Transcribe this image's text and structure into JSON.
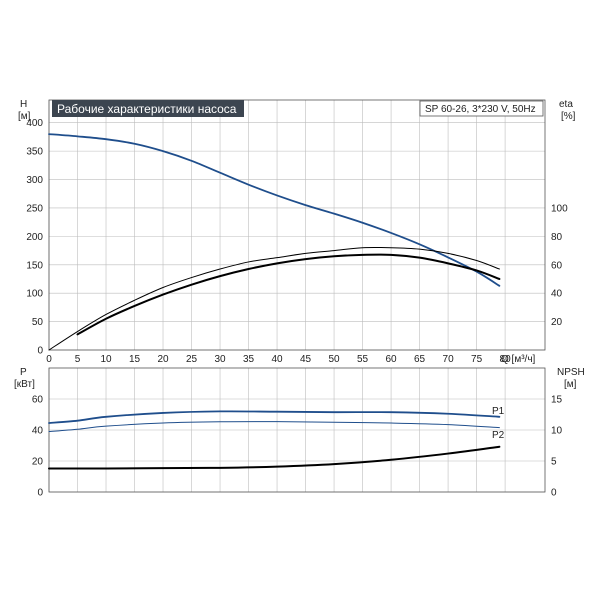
{
  "chart_data": [
    {
      "type": "line",
      "title": "Рабочие характеристики насоса",
      "subtitle": "SP 60-26, 3*230 V, 50Hz",
      "xlabel": "Q [м³/ч]",
      "ylabel_left": "H",
      "ylabel_left_unit": "[м]",
      "ylabel_right": "eta",
      "ylabel_right_unit": "[%]",
      "xlim": [
        0,
        87
      ],
      "ylim": [
        0,
        440
      ],
      "ylim_right": [
        0,
        176
      ],
      "x_ticks": [
        "0",
        "5",
        "10",
        "15",
        "20",
        "25",
        "30",
        "35",
        "40",
        "45",
        "50",
        "55",
        "60",
        "65",
        "70",
        "75",
        "80"
      ],
      "y_ticks": [
        "0",
        "50",
        "100",
        "150",
        "200",
        "250",
        "300",
        "350",
        "400"
      ],
      "y_right_ticks": [
        "20",
        "40",
        "60",
        "80",
        "100"
      ],
      "grid": true,
      "series": [
        {
          "axis": "left",
          "color": "#1f4e8c",
          "x": [
            0,
            5,
            10,
            15,
            20,
            25,
            30,
            35,
            40,
            45,
            50,
            55,
            60,
            65,
            70,
            75,
            79
          ],
          "y": [
            380,
            376,
            371,
            363,
            350,
            333,
            312,
            291,
            272,
            255,
            240,
            224,
            206,
            186,
            163,
            138,
            113
          ]
        },
        {
          "axis": "right",
          "color": "#000000",
          "x": [
            0,
            5,
            10,
            15,
            20,
            25,
            30,
            35,
            40,
            45,
            50,
            55,
            60,
            65,
            70,
            75,
            79
          ],
          "y": [
            0,
            13,
            25,
            35,
            44,
            51,
            57,
            62,
            65,
            68,
            70,
            72,
            72,
            71,
            68,
            63,
            57
          ]
        },
        {
          "axis": "right",
          "color": "#000000",
          "x": [
            5,
            10,
            15,
            20,
            25,
            30,
            35,
            40,
            45,
            50,
            55,
            60,
            65,
            70,
            75,
            79
          ],
          "y": [
            11,
            22,
            31,
            39,
            46,
            52,
            57,
            61,
            64,
            66,
            67,
            67,
            65,
            61,
            56,
            50
          ]
        }
      ]
    },
    {
      "type": "line",
      "xlabel": "",
      "ylabel_left": "P",
      "ylabel_left_unit": "[кВт]",
      "ylabel_right": "NPSH",
      "ylabel_right_unit": "[м]",
      "xlim": [
        0,
        87
      ],
      "ylim": [
        0,
        80
      ],
      "ylim_right": [
        0,
        20
      ],
      "y_ticks": [
        "0",
        "20",
        "40",
        "60"
      ],
      "y_right_ticks": [
        "0",
        "5",
        "10",
        "15"
      ],
      "grid": true,
      "series": [
        {
          "name": "P1",
          "axis": "left",
          "color": "#1f4e8c",
          "x": [
            0,
            5,
            10,
            20,
            30,
            40,
            50,
            60,
            70,
            79
          ],
          "y": [
            44.5,
            46,
            48.5,
            51,
            52,
            51.8,
            51.5,
            51.5,
            50.5,
            48.5
          ]
        },
        {
          "name": "P2",
          "axis": "left",
          "color": "#1f4e8c",
          "x": [
            0,
            5,
            10,
            20,
            30,
            40,
            50,
            60,
            70,
            79
          ],
          "y": [
            39,
            40.5,
            42.5,
            44.5,
            45.3,
            45.4,
            45,
            44.5,
            43.5,
            41.5
          ]
        },
        {
          "axis": "right",
          "color": "#000000",
          "x": [
            0,
            5,
            10,
            20,
            30,
            40,
            50,
            60,
            70,
            79
          ],
          "y": [
            3.8,
            3.8,
            3.8,
            3.85,
            3.9,
            4.1,
            4.5,
            5.2,
            6.2,
            7.3
          ]
        }
      ]
    }
  ]
}
